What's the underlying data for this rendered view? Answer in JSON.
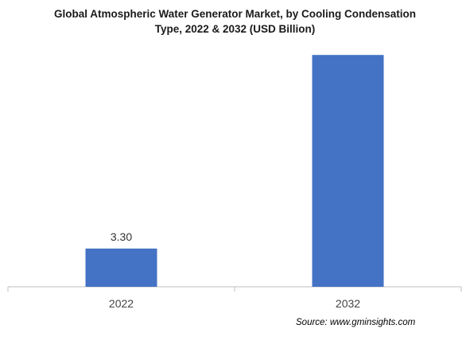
{
  "chart_data": {
    "type": "bar",
    "title_line1": "Global Atmospheric Water Generator  Market, by Cooling Condensation",
    "title_line2": "Type, 2022  & 2032  (USD Billion)",
    "categories": [
      "2022",
      "2032"
    ],
    "values": [
      3.3,
      20.0
    ],
    "data_labels": [
      "3.30",
      ""
    ],
    "ylim": [
      0,
      22
    ],
    "bar_color": "#4472c4",
    "axis_color": "#bfbfbf",
    "grid": false,
    "legend": "none"
  },
  "source": "Source: www.gminsights.com"
}
